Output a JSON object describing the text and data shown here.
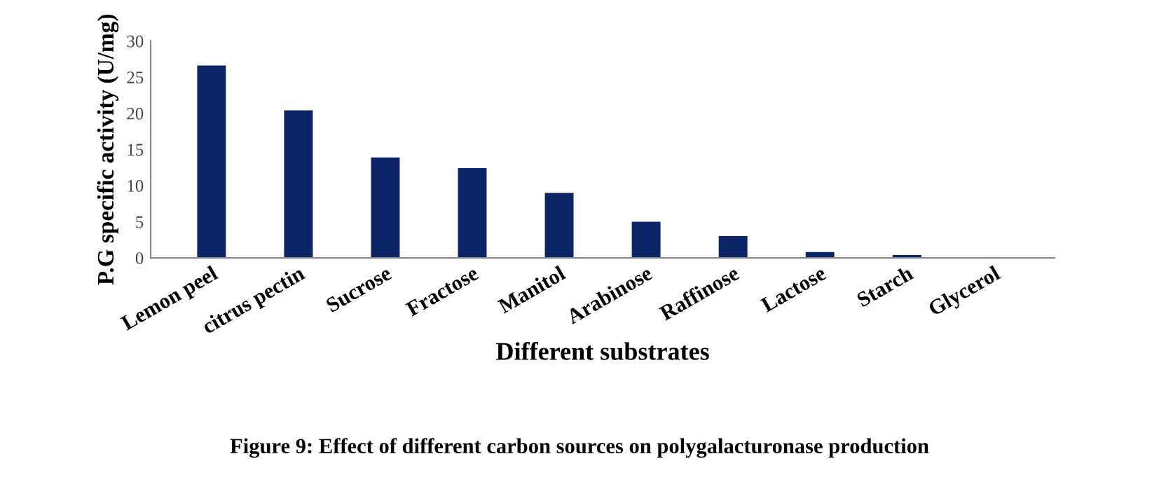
{
  "chart_data": {
    "type": "bar",
    "xlabel": "Different substrates",
    "ylabel": "P.G specific activity (U/mg)",
    "categories": [
      "Lemon peel",
      "citrus pectin",
      "Sucrose",
      "Fractose",
      "Manitol",
      "Arabinose",
      "Raffinose",
      "Lactose",
      "Starch",
      "Glycerol"
    ],
    "values": [
      26.6,
      20.4,
      13.9,
      12.4,
      9.0,
      5.0,
      3.0,
      0.8,
      0.4,
      0
    ],
    "color": "#0b2467",
    "ylim": [
      0,
      30
    ],
    "yticks": [
      0,
      5,
      10,
      15,
      20,
      25,
      30
    ],
    "grid": false,
    "annotations": [
      "Figure 9: Effect of different carbon sources on polygalacturonase production"
    ]
  }
}
